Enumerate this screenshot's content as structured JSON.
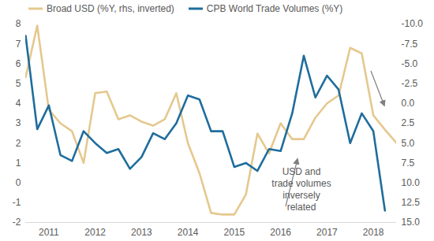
{
  "chart_data": {
    "type": "line",
    "x": [
      2010.5,
      2010.75,
      2011,
      2011.25,
      2011.5,
      2011.75,
      2012,
      2012.25,
      2012.5,
      2012.75,
      2013,
      2013.25,
      2013.5,
      2013.75,
      2014,
      2014.25,
      2014.5,
      2014.75,
      2015,
      2015.25,
      2015.5,
      2015.75,
      2016,
      2016.25,
      2016.5,
      2016.75,
      2017,
      2017.25,
      2017.5,
      2017.75,
      2018,
      2018.25,
      2018.5
    ],
    "xlim": [
      2010.5,
      2018.5
    ],
    "xticks": [
      2011,
      2012,
      2013,
      2014,
      2015,
      2016,
      2017,
      2018
    ],
    "ylim": [
      -2,
      8
    ],
    "yticks": [
      -2,
      -1,
      0,
      1,
      2,
      3,
      4,
      5,
      6,
      7,
      8
    ],
    "y2lim": [
      15,
      -10
    ],
    "y2ticks": [
      {
        "value": -10,
        "label": "-10.0"
      },
      -7.5,
      {
        "value": -5,
        "label": "-5.0"
      },
      -2.5,
      {
        "value": 0,
        "label": "0.0"
      },
      2.5,
      {
        "value": 5,
        "label": "5.0"
      },
      7.5,
      {
        "value": 10,
        "label": "10.0"
      },
      12.5,
      {
        "value": 15,
        "label": "15.0"
      }
    ],
    "grid": false,
    "legend": "top-left",
    "series": [
      {
        "name": "Broad USD (%Y, rhs, inverted)",
        "color": "#e5c88e",
        "axis": "y2",
        "values": [
          -3.3,
          -9.8,
          0.8,
          2.5,
          3.5,
          7.5,
          -1.3,
          -1.5,
          2.0,
          1.5,
          2.3,
          2.8,
          2.0,
          -1.3,
          5.0,
          8.8,
          13.8,
          14.0,
          14.0,
          11.5,
          3.8,
          6.3,
          2.5,
          4.5,
          4.5,
          1.8,
          0.0,
          -1.0,
          -7.0,
          -6.3,
          1.5,
          3.3,
          5.0
        ]
      },
      {
        "name": "CPB World Trade Volumes (%Y)",
        "color": "#1f6d9c",
        "values": [
          7.4,
          2.7,
          3.9,
          1.4,
          1.1,
          2.6,
          2.0,
          1.5,
          1.7,
          0.7,
          1.3,
          2.5,
          2.2,
          3.0,
          4.4,
          4.2,
          2.6,
          2.6,
          0.8,
          1.0,
          0.6,
          1.7,
          1.6,
          3.5,
          6.4,
          4.3,
          5.4,
          4.7,
          2.0,
          3.5,
          2.6,
          -1.4,
          null
        ]
      }
    ],
    "annotation": [
      "USD and",
      "trade volumes",
      "inversely",
      "related"
    ]
  }
}
